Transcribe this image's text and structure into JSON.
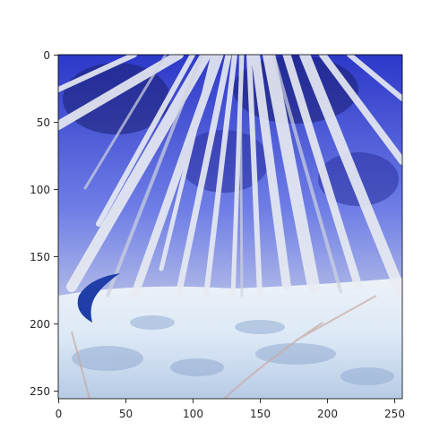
{
  "image_panel": {
    "x_ticks": [
      "0",
      "50",
      "100",
      "150",
      "200",
      "250"
    ],
    "y_ticks": [
      "0",
      "50",
      "100",
      "150",
      "200",
      "250"
    ]
  },
  "colors": {
    "sky_deep": "#2c38c8",
    "sky_light": "#8e9cf0",
    "trunk": "#e9ecf2",
    "ground": "#dbe8f6",
    "ground_shadow": "#8ea7cf",
    "object_blue": "#1f3ea8"
  }
}
